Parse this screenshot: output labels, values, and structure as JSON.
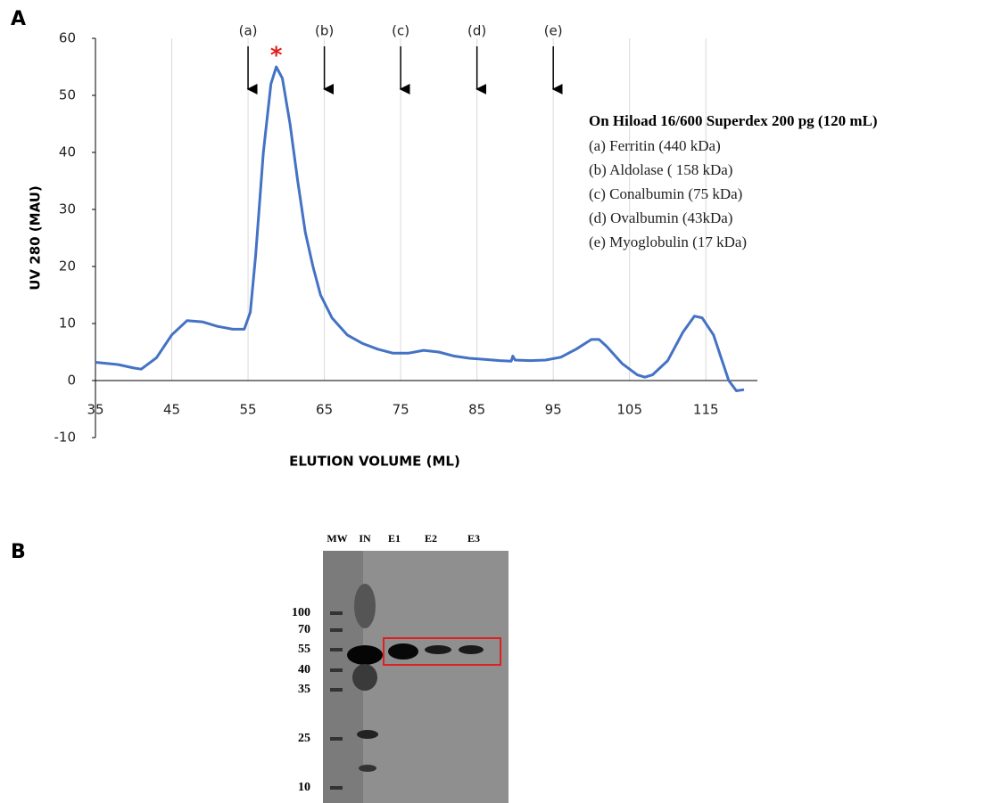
{
  "panels": [
    "A",
    "B"
  ],
  "chart_data": {
    "type": "line",
    "xlabel": "ELUTION VOLUME (ML)",
    "ylabel": "UV 280 (MAU)",
    "x": [
      35,
      38,
      40,
      41,
      43,
      45,
      47,
      49,
      51,
      53,
      54.5,
      55.3,
      56,
      57,
      58,
      58.7,
      59.5,
      60.5,
      61.5,
      62.5,
      63.5,
      64.5,
      66,
      68,
      70,
      72,
      74,
      76,
      78,
      80,
      82,
      84,
      86,
      88,
      89.5,
      89.7,
      90,
      92,
      94,
      96,
      98,
      100,
      101,
      102,
      104,
      106,
      107,
      108,
      110,
      112,
      113.5,
      114.5,
      116,
      117,
      118,
      119,
      120
    ],
    "values": [
      3.2,
      2.8,
      2.2,
      2.0,
      4,
      8,
      10.5,
      10.3,
      9.5,
      9,
      9,
      12,
      22,
      40,
      52,
      55,
      53,
      45,
      35,
      26,
      20,
      15,
      11,
      8,
      6.5,
      5.5,
      4.8,
      4.8,
      5.3,
      5,
      4.3,
      3.9,
      3.7,
      3.5,
      3.4,
      4.3,
      3.6,
      3.5,
      3.6,
      4.1,
      5.5,
      7.2,
      7.2,
      6,
      3,
      1,
      0.6,
      1,
      3.5,
      8.5,
      11.3,
      11,
      8,
      4,
      0,
      -1.8,
      -1.6
    ],
    "color": "#4472c4",
    "xlim": [
      35,
      120
    ],
    "ylim": [
      -10,
      60
    ],
    "xticks": [
      35,
      45,
      55,
      65,
      75,
      85,
      95,
      105,
      115
    ],
    "yticks": [
      -10,
      0,
      10,
      20,
      30,
      40,
      50,
      60
    ],
    "grid": "x",
    "peak_marker": {
      "label": "*",
      "x": 58.7,
      "y": 57.5
    },
    "arrows": [
      {
        "label": "(a)",
        "x": 55
      },
      {
        "label": "(b)",
        "x": 65
      },
      {
        "label": "(c)",
        "x": 75
      },
      {
        "label": "(d)",
        "x": 85
      },
      {
        "label": "(e)",
        "x": 95
      }
    ],
    "notes": {
      "title": "On Hiload 16/600 Superdex 200 pg (120 mL)",
      "items": [
        "(a) Ferritin (440 kDa)",
        "(b) Aldolase ( 158 kDa)",
        "(c) Conalbumin (75 kDa)",
        "(d) Ovalbumin (43kDa)",
        "(e) Myoglobulin (17 kDa)"
      ]
    }
  },
  "gel": {
    "lanes": [
      "MW",
      "IN",
      "E1",
      "E2",
      "E3"
    ],
    "markers": [
      100,
      70,
      55,
      40,
      35,
      25,
      10
    ]
  }
}
